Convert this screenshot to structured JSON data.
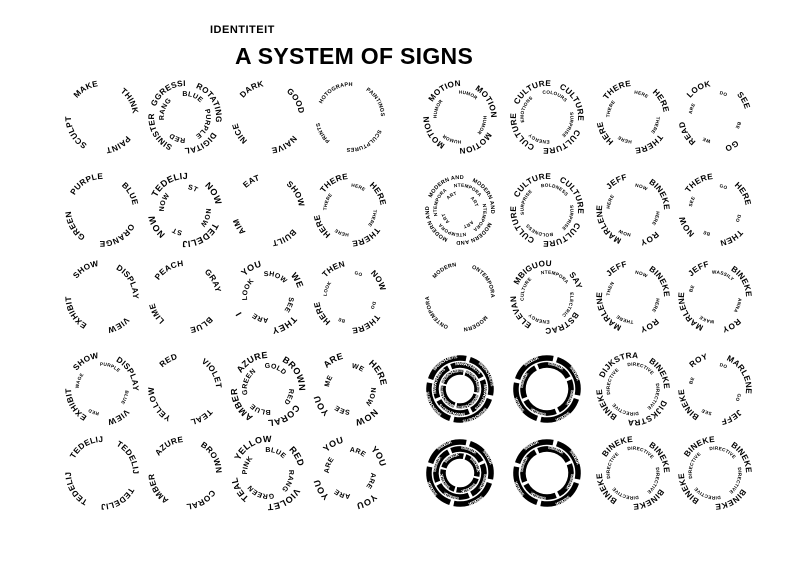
{
  "page": {
    "kicker": "IDENTITEIT",
    "title": "A SYSTEM OF SIGNS"
  },
  "theme": {
    "ink": "#000000",
    "paper": "#ffffff"
  },
  "signs": [
    {
      "rings": [
        {
          "words": [
            "MAKE",
            "THINK",
            "PAINT",
            "SCULPT"
          ],
          "weight": "bold"
        }
      ]
    },
    {
      "rings": [
        {
          "words": [
            "AGGRESSIVE",
            "ROTATING",
            "DIGITAL",
            "SINISTER"
          ],
          "weight": "bold"
        },
        {
          "words": [
            "BLUE",
            "PURPLE",
            "RED",
            "ORANGE"
          ],
          "weight": "bold"
        }
      ]
    },
    {
      "rings": [
        {
          "words": [
            "DARK",
            "GOOD",
            "NAIVE",
            "NICE"
          ],
          "weight": "bold"
        }
      ]
    },
    {
      "rings": [
        {
          "words": [
            "PHOTOGRAPHS",
            "PAINTINGS",
            "SCULPTURES",
            "PRINTS"
          ],
          "weight": "normal"
        }
      ]
    },
    {
      "rings": [
        {
          "words": [
            "EMOTIONS",
            "EMOTIONS",
            "EMOTIONS",
            "EMOTIONS"
          ],
          "weight": "bold"
        },
        {
          "words": [
            "HUMOR",
            "HUMOR",
            "HUMOR",
            "HUMOR"
          ],
          "weight": "normal"
        }
      ]
    },
    {
      "rings": [
        {
          "words": [
            "CULTURE",
            "CULTURE",
            "CULTURE",
            "CULTURE"
          ],
          "weight": "bold"
        },
        {
          "words": [
            "COLOURS",
            "SURPRISE",
            "ENERGY",
            "EMOTIONS"
          ],
          "weight": "normal"
        }
      ]
    },
    {
      "rings": [
        {
          "words": [
            "THERE",
            "HERE",
            "THERE",
            "HERE"
          ],
          "weight": "bold"
        },
        {
          "words": [
            "HERE",
            "THERE",
            "HERE",
            "THERE"
          ],
          "weight": "normal"
        }
      ]
    },
    {
      "rings": [
        {
          "words": [
            "LOOK",
            "SEE",
            "GO",
            "READ"
          ],
          "weight": "bold"
        },
        {
          "words": [
            "DO",
            "BE",
            "WE",
            "ARE"
          ],
          "weight": "normal"
        }
      ]
    },
    {
      "rings": [
        {
          "words": [
            "PURPLE",
            "BLUE",
            "ORANGE",
            "GREEN"
          ],
          "weight": "bold"
        }
      ]
    },
    {
      "rings": [
        {
          "words": [
            "STEDELIJK",
            "NOW",
            "STEDELIJK",
            "NOW"
          ],
          "weight": "heavy"
        },
        {
          "words": [
            "ST",
            "NOW",
            "ST",
            "NOW"
          ],
          "weight": "bold"
        }
      ]
    },
    {
      "rings": [
        {
          "words": [
            "EAT",
            "SHOW",
            "BUILT",
            "AIM"
          ],
          "weight": "bold"
        }
      ]
    },
    {
      "rings": [
        {
          "words": [
            "THERE",
            "HERE",
            "THERE",
            "HERE"
          ],
          "weight": "bold"
        },
        {
          "words": [
            "HERE",
            "THERE",
            "HERE",
            "THERE"
          ],
          "weight": "normal"
        }
      ]
    },
    {
      "rings": [
        {
          "words": [
            "MODERN AND",
            "MODERN AND",
            "MODERN AND",
            "MODERN AND"
          ],
          "weight": "normal"
        },
        {
          "words": [
            "CONTEMPORARY",
            "CONTEMPORARY",
            "CONTEMPORARY",
            "CONTEMPORARY"
          ],
          "weight": "normal"
        },
        {
          "words": [
            "ART",
            "ART",
            "ART",
            "ART"
          ],
          "weight": "normal"
        }
      ]
    },
    {
      "rings": [
        {
          "words": [
            "CULTURE",
            "CULTURE",
            "CULTURE",
            "CULTURE"
          ],
          "weight": "bold"
        },
        {
          "words": [
            "BOLDNESS",
            "SURPRISE",
            "BOLDNESS",
            "SURPRISE"
          ],
          "weight": "normal"
        }
      ]
    },
    {
      "rings": [
        {
          "words": [
            "JEFF",
            "BINEKE",
            "ROY",
            "MARLENE"
          ],
          "weight": "bold"
        },
        {
          "words": [
            "NOW",
            "HERE",
            "NOW",
            "HERE"
          ],
          "weight": "normal"
        }
      ]
    },
    {
      "rings": [
        {
          "words": [
            "THERE",
            "HERE",
            "THEN",
            "NOW"
          ],
          "weight": "bold"
        },
        {
          "words": [
            "GO",
            "DO",
            "BE",
            "SEE"
          ],
          "weight": "normal"
        }
      ]
    },
    {
      "rings": [
        {
          "words": [
            "SHOW",
            "DISPLAY",
            "VIEW",
            "EXHIBIT"
          ],
          "weight": "bold"
        }
      ]
    },
    {
      "rings": [
        {
          "words": [
            "PEACH",
            "GRAY",
            "BLUE",
            "LIME"
          ],
          "weight": "bold"
        }
      ]
    },
    {
      "rings": [
        {
          "words": [
            "YOU",
            "WE",
            "THEY",
            "I"
          ],
          "weight": "heavy"
        },
        {
          "words": [
            "SHOW",
            "SEE",
            "ARE",
            "LOOK"
          ],
          "weight": "bold"
        }
      ]
    },
    {
      "rings": [
        {
          "words": [
            "THEN",
            "NOW",
            "THERE",
            "HERE"
          ],
          "weight": "bold"
        },
        {
          "words": [
            "GO",
            "DO",
            "BE",
            "LOOK"
          ],
          "weight": "normal"
        }
      ]
    },
    {
      "rings": [
        {
          "words": [
            "MODERN",
            "CONTEMPORARY",
            "MODERN",
            "CONTEMPORARY"
          ],
          "weight": "normal"
        }
      ]
    },
    {
      "rings": [
        {
          "words": [
            "AMBIGUOUS",
            "SAY",
            "ABSTRACT",
            "RELEVANT"
          ],
          "weight": "bold"
        },
        {
          "words": [
            "CONTEMPORARY",
            "ELECTRIC",
            "ENERGY",
            "CULTURE"
          ],
          "weight": "normal"
        }
      ]
    },
    {
      "rings": [
        {
          "words": [
            "JEFF",
            "BINEKE",
            "ROY",
            "MARLENE"
          ],
          "weight": "bold"
        },
        {
          "words": [
            "NOW",
            "HERE",
            "THERE",
            "THEN"
          ],
          "weight": "normal"
        }
      ]
    },
    {
      "rings": [
        {
          "words": [
            "JEFF",
            "BINEKE",
            "ROY",
            "MARLENE"
          ],
          "weight": "bold"
        },
        {
          "words": [
            "WASSILY",
            "ANNA",
            "MAKE",
            "BE"
          ],
          "weight": "normal"
        }
      ]
    },
    {
      "rings": [
        {
          "words": [
            "SHOW",
            "DISPLAY",
            "VIEW",
            "EXHIBIT"
          ],
          "weight": "bold"
        },
        {
          "words": [
            "PURPLE",
            "BLUE",
            "RED",
            "WAGE"
          ],
          "weight": "normal"
        }
      ]
    },
    {
      "rings": [
        {
          "words": [
            "RED",
            "VIOLET",
            "TEAL",
            "YELLOW"
          ],
          "weight": "bold"
        }
      ]
    },
    {
      "rings": [
        {
          "words": [
            "AZURE",
            "BROWN",
            "CORAL",
            "AMBER"
          ],
          "weight": "heavy"
        },
        {
          "words": [
            "GOLD",
            "RED",
            "BLUE",
            "GREEN"
          ],
          "weight": "bold"
        }
      ]
    },
    {
      "rings": [
        {
          "words": [
            "ARE",
            "HERE",
            "NOW",
            "YOU"
          ],
          "weight": "heavy"
        },
        {
          "words": [
            "WE",
            "NOW",
            "SEE",
            "ME"
          ],
          "weight": "bold"
        }
      ]
    },
    {
      "rings": [
        {
          "words": [
            "MASSACHUSETTS",
            "MASSACHUSETTS",
            "MASSACHUSETTS",
            "MASSACHUSETTS"
          ],
          "weight": "black"
        },
        {
          "words": [
            "MASSACHUSETTS",
            "MASSACHUSETTS",
            "MASSACHUSETTS",
            "MASSACHUSETTS"
          ],
          "weight": "black"
        },
        {
          "words": [
            "MASSACHUSETTS",
            "MASSACHUSETTS",
            "MASSACHUSETTS",
            "MASSACHUSETTS"
          ],
          "weight": "black"
        }
      ]
    },
    {
      "rings": [
        {
          "words": [
            "STEDELIJK",
            "STEDELIJK",
            "STEDELIJK",
            "STEDELIJK"
          ],
          "weight": "black"
        },
        {
          "words": [
            "STEDELIJK",
            "STEDELIJK",
            "STEDELIJK",
            "STEDELIJK"
          ],
          "weight": "black"
        }
      ]
    },
    {
      "rings": [
        {
          "words": [
            "DIJKSTRA",
            "BINEKE",
            "DIJKSTRA",
            "BINEKE"
          ],
          "weight": "bold"
        },
        {
          "words": [
            "DIRECTIVE",
            "DIRECTIVE",
            "DIRECTIVE",
            "DIRECTIVE"
          ],
          "weight": "normal"
        }
      ]
    },
    {
      "rings": [
        {
          "words": [
            "ROY",
            "MARLENE",
            "JEFF",
            "BINEKE"
          ],
          "weight": "bold"
        },
        {
          "words": [
            "DO",
            "GO",
            "SEE",
            "BE"
          ],
          "weight": "normal"
        }
      ]
    },
    {
      "rings": [
        {
          "words": [
            "STEDELIJK",
            "STEDELIJK",
            "STEDELIJK",
            "STEDELIJK"
          ],
          "weight": "bold"
        }
      ]
    },
    {
      "rings": [
        {
          "words": [
            "AZURE",
            "BROWN",
            "CORAL",
            "AMBER"
          ],
          "weight": "bold"
        }
      ]
    },
    {
      "rings": [
        {
          "words": [
            "YELLOW",
            "RED",
            "VIOLET",
            "TEAL"
          ],
          "weight": "heavy"
        },
        {
          "words": [
            "BLUE",
            "ORANGE",
            "GREEN",
            "PINK"
          ],
          "weight": "bold"
        }
      ]
    },
    {
      "rings": [
        {
          "words": [
            "YOU",
            "YOU",
            "YOU",
            "YOU"
          ],
          "weight": "heavy"
        },
        {
          "words": [
            "ARE",
            "ARE",
            "ARE",
            "ARE"
          ],
          "weight": "bold"
        }
      ]
    },
    {
      "rings": [
        {
          "words": [
            "STEDELIJK",
            "STEDELIJK",
            "STEDELIJK",
            "STEDELIJK"
          ],
          "weight": "black"
        },
        {
          "words": [
            "STEDELIJK",
            "STEDELIJK",
            "STEDELIJK",
            "STEDELIJK"
          ],
          "weight": "black"
        },
        {
          "words": [
            "STEDELIJK",
            "STEDELIJK",
            "STEDELIJK",
            "STEDELIJK"
          ],
          "weight": "black"
        }
      ]
    },
    {
      "rings": [
        {
          "words": [
            "STEDELIJK",
            "STEDELIJK",
            "STEDELIJK",
            "STEDELIJK"
          ],
          "weight": "black"
        },
        {
          "words": [
            "STEDELIJK",
            "STEDELIJK",
            "STEDELIJK",
            "STEDELIJK"
          ],
          "weight": "black"
        }
      ]
    },
    {
      "rings": [
        {
          "words": [
            "BINEKE",
            "BINEKE",
            "BINEKE",
            "BINEKE"
          ],
          "weight": "bold"
        },
        {
          "words": [
            "DIRECTIVE",
            "DIRECTIVE",
            "DIRECTIVE",
            "DIRECTIVE"
          ],
          "weight": "normal"
        }
      ]
    },
    {
      "rings": [
        {
          "words": [
            "BINEKE",
            "BINEKE",
            "BINEKE",
            "BINEKE"
          ],
          "weight": "bold"
        },
        {
          "words": [
            "DIRECTIVE",
            "DIRECTIVE",
            "DIRECTIVE",
            "DIRECTIVE"
          ],
          "weight": "normal"
        }
      ]
    }
  ]
}
